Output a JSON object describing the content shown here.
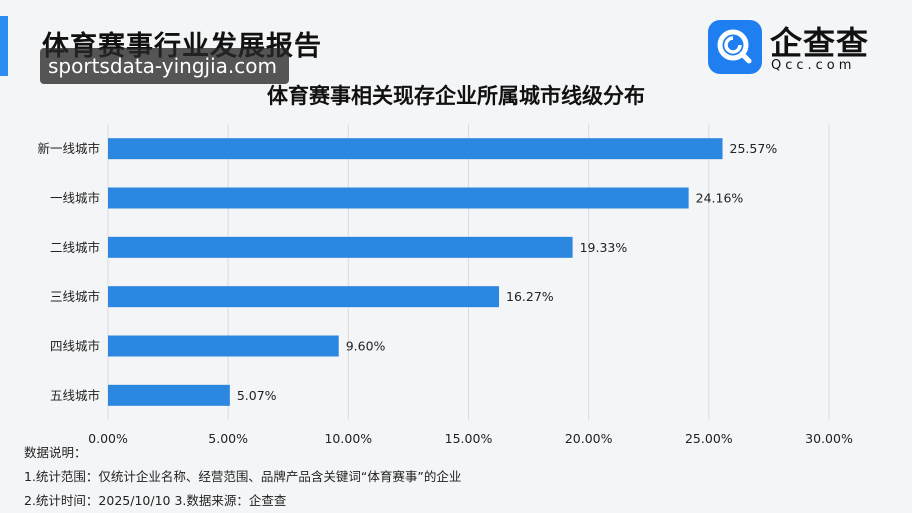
{
  "report_title": "体育赛事行业发展报告",
  "watermark": "sportsdata-yingjia.com",
  "logo": {
    "name": "企查查",
    "sub": "Qcc.com",
    "icon": "qcc-logo-icon",
    "color": "#1f7ff0"
  },
  "notes": {
    "heading": "数据说明：",
    "line1": "1.统计范围：仅统计企业名称、经营范围、品牌产品含关键词“体育赛事”的企业",
    "line2": "2.统计时间：2025/10/10  3.数据来源：企查查"
  },
  "chart_data": {
    "type": "bar",
    "orientation": "horizontal",
    "title": "体育赛事相关现存企业所属城市线级分布",
    "categories": [
      "新一线城市",
      "一线城市",
      "二线城市",
      "三线城市",
      "四线城市",
      "五线城市"
    ],
    "values": [
      25.57,
      24.16,
      19.33,
      16.27,
      9.6,
      5.07
    ],
    "data_labels": [
      "25.57%",
      "24.16%",
      "19.33%",
      "16.27%",
      "9.60%",
      "5.07%"
    ],
    "xlim": [
      0,
      30
    ],
    "xticks": [
      0,
      5,
      10,
      15,
      20,
      25,
      30
    ],
    "xtick_labels": [
      "0.00%",
      "5.00%",
      "10.00%",
      "15.00%",
      "20.00%",
      "25.00%",
      "30.00%"
    ],
    "xlabel": "",
    "ylabel": "",
    "grid": "vertical",
    "bar_color": "#2c87e0"
  }
}
